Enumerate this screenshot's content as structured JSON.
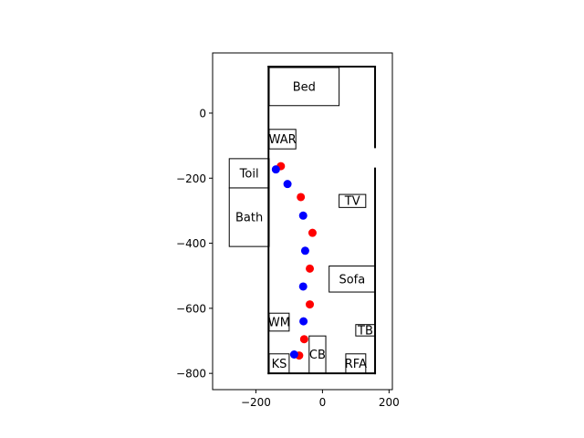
{
  "chart_data": {
    "type": "scatter",
    "title": "",
    "xlabel": "",
    "ylabel": "",
    "xlim": [
      -330,
      210
    ],
    "ylim": [
      -850,
      185
    ],
    "grid": false,
    "x_ticks": [
      {
        "value": -200,
        "label": "−200"
      },
      {
        "value": 0,
        "label": "0"
      },
      {
        "value": 200,
        "label": "200"
      }
    ],
    "y_ticks": [
      {
        "value": 0,
        "label": "0"
      },
      {
        "value": -200,
        "label": "−200"
      },
      {
        "value": -400,
        "label": "−400"
      },
      {
        "value": -600,
        "label": "−600"
      },
      {
        "value": -800,
        "label": "−800"
      }
    ],
    "outline": {
      "segments": [
        [
          [
            -162,
            143
          ],
          [
            158,
            143
          ]
        ],
        [
          [
            -162,
            143
          ],
          [
            -162,
            -800
          ]
        ],
        [
          [
            -162,
            -800
          ],
          [
            158,
            -800
          ]
        ],
        [
          [
            158,
            143
          ],
          [
            158,
            -105
          ]
        ],
        [
          [
            158,
            -170
          ],
          [
            158,
            -800
          ]
        ]
      ]
    },
    "furniture": [
      {
        "label": "Bed",
        "x0": -160,
        "y0": 23,
        "x1": 50,
        "y1": 140
      },
      {
        "label": "WAR",
        "x0": -160,
        "y0": -110,
        "x1": -80,
        "y1": -50
      },
      {
        "label": "Toil",
        "x0": -280,
        "y0": -230,
        "x1": -160,
        "y1": -140
      },
      {
        "label": "Bath",
        "x0": -280,
        "y0": -410,
        "x1": -160,
        "y1": -230
      },
      {
        "label": "TV",
        "x0": 50,
        "y0": -290,
        "x1": 130,
        "y1": -250
      },
      {
        "label": "Sofa",
        "x0": 20,
        "y0": -550,
        "x1": 158,
        "y1": -470
      },
      {
        "label": "WM",
        "x0": -160,
        "y0": -670,
        "x1": -100,
        "y1": -615
      },
      {
        "label": "TB",
        "x0": 100,
        "y0": -685,
        "x1": 158,
        "y1": -650
      },
      {
        "label": "KS",
        "x0": -160,
        "y0": -800,
        "x1": -100,
        "y1": -740
      },
      {
        "label": "CB",
        "x0": -40,
        "y0": -800,
        "x1": 10,
        "y1": -685
      },
      {
        "label": "RFA",
        "x0": 70,
        "y0": -800,
        "x1": 130,
        "y1": -740
      }
    ],
    "series": [
      {
        "color": "#ff0000",
        "points": [
          {
            "x": -125,
            "y": -163
          },
          {
            "x": -65,
            "y": -258
          },
          {
            "x": -30,
            "y": -368
          },
          {
            "x": -38,
            "y": -478
          },
          {
            "x": -38,
            "y": -588
          },
          {
            "x": -55,
            "y": -695
          },
          {
            "x": -70,
            "y": -745
          }
        ]
      },
      {
        "color": "#0000ff",
        "points": [
          {
            "x": -140,
            "y": -173
          },
          {
            "x": -105,
            "y": -218
          },
          {
            "x": -58,
            "y": -315
          },
          {
            "x": -52,
            "y": -423
          },
          {
            "x": -58,
            "y": -533
          },
          {
            "x": -57,
            "y": -640
          },
          {
            "x": -85,
            "y": -742
          }
        ]
      }
    ]
  }
}
